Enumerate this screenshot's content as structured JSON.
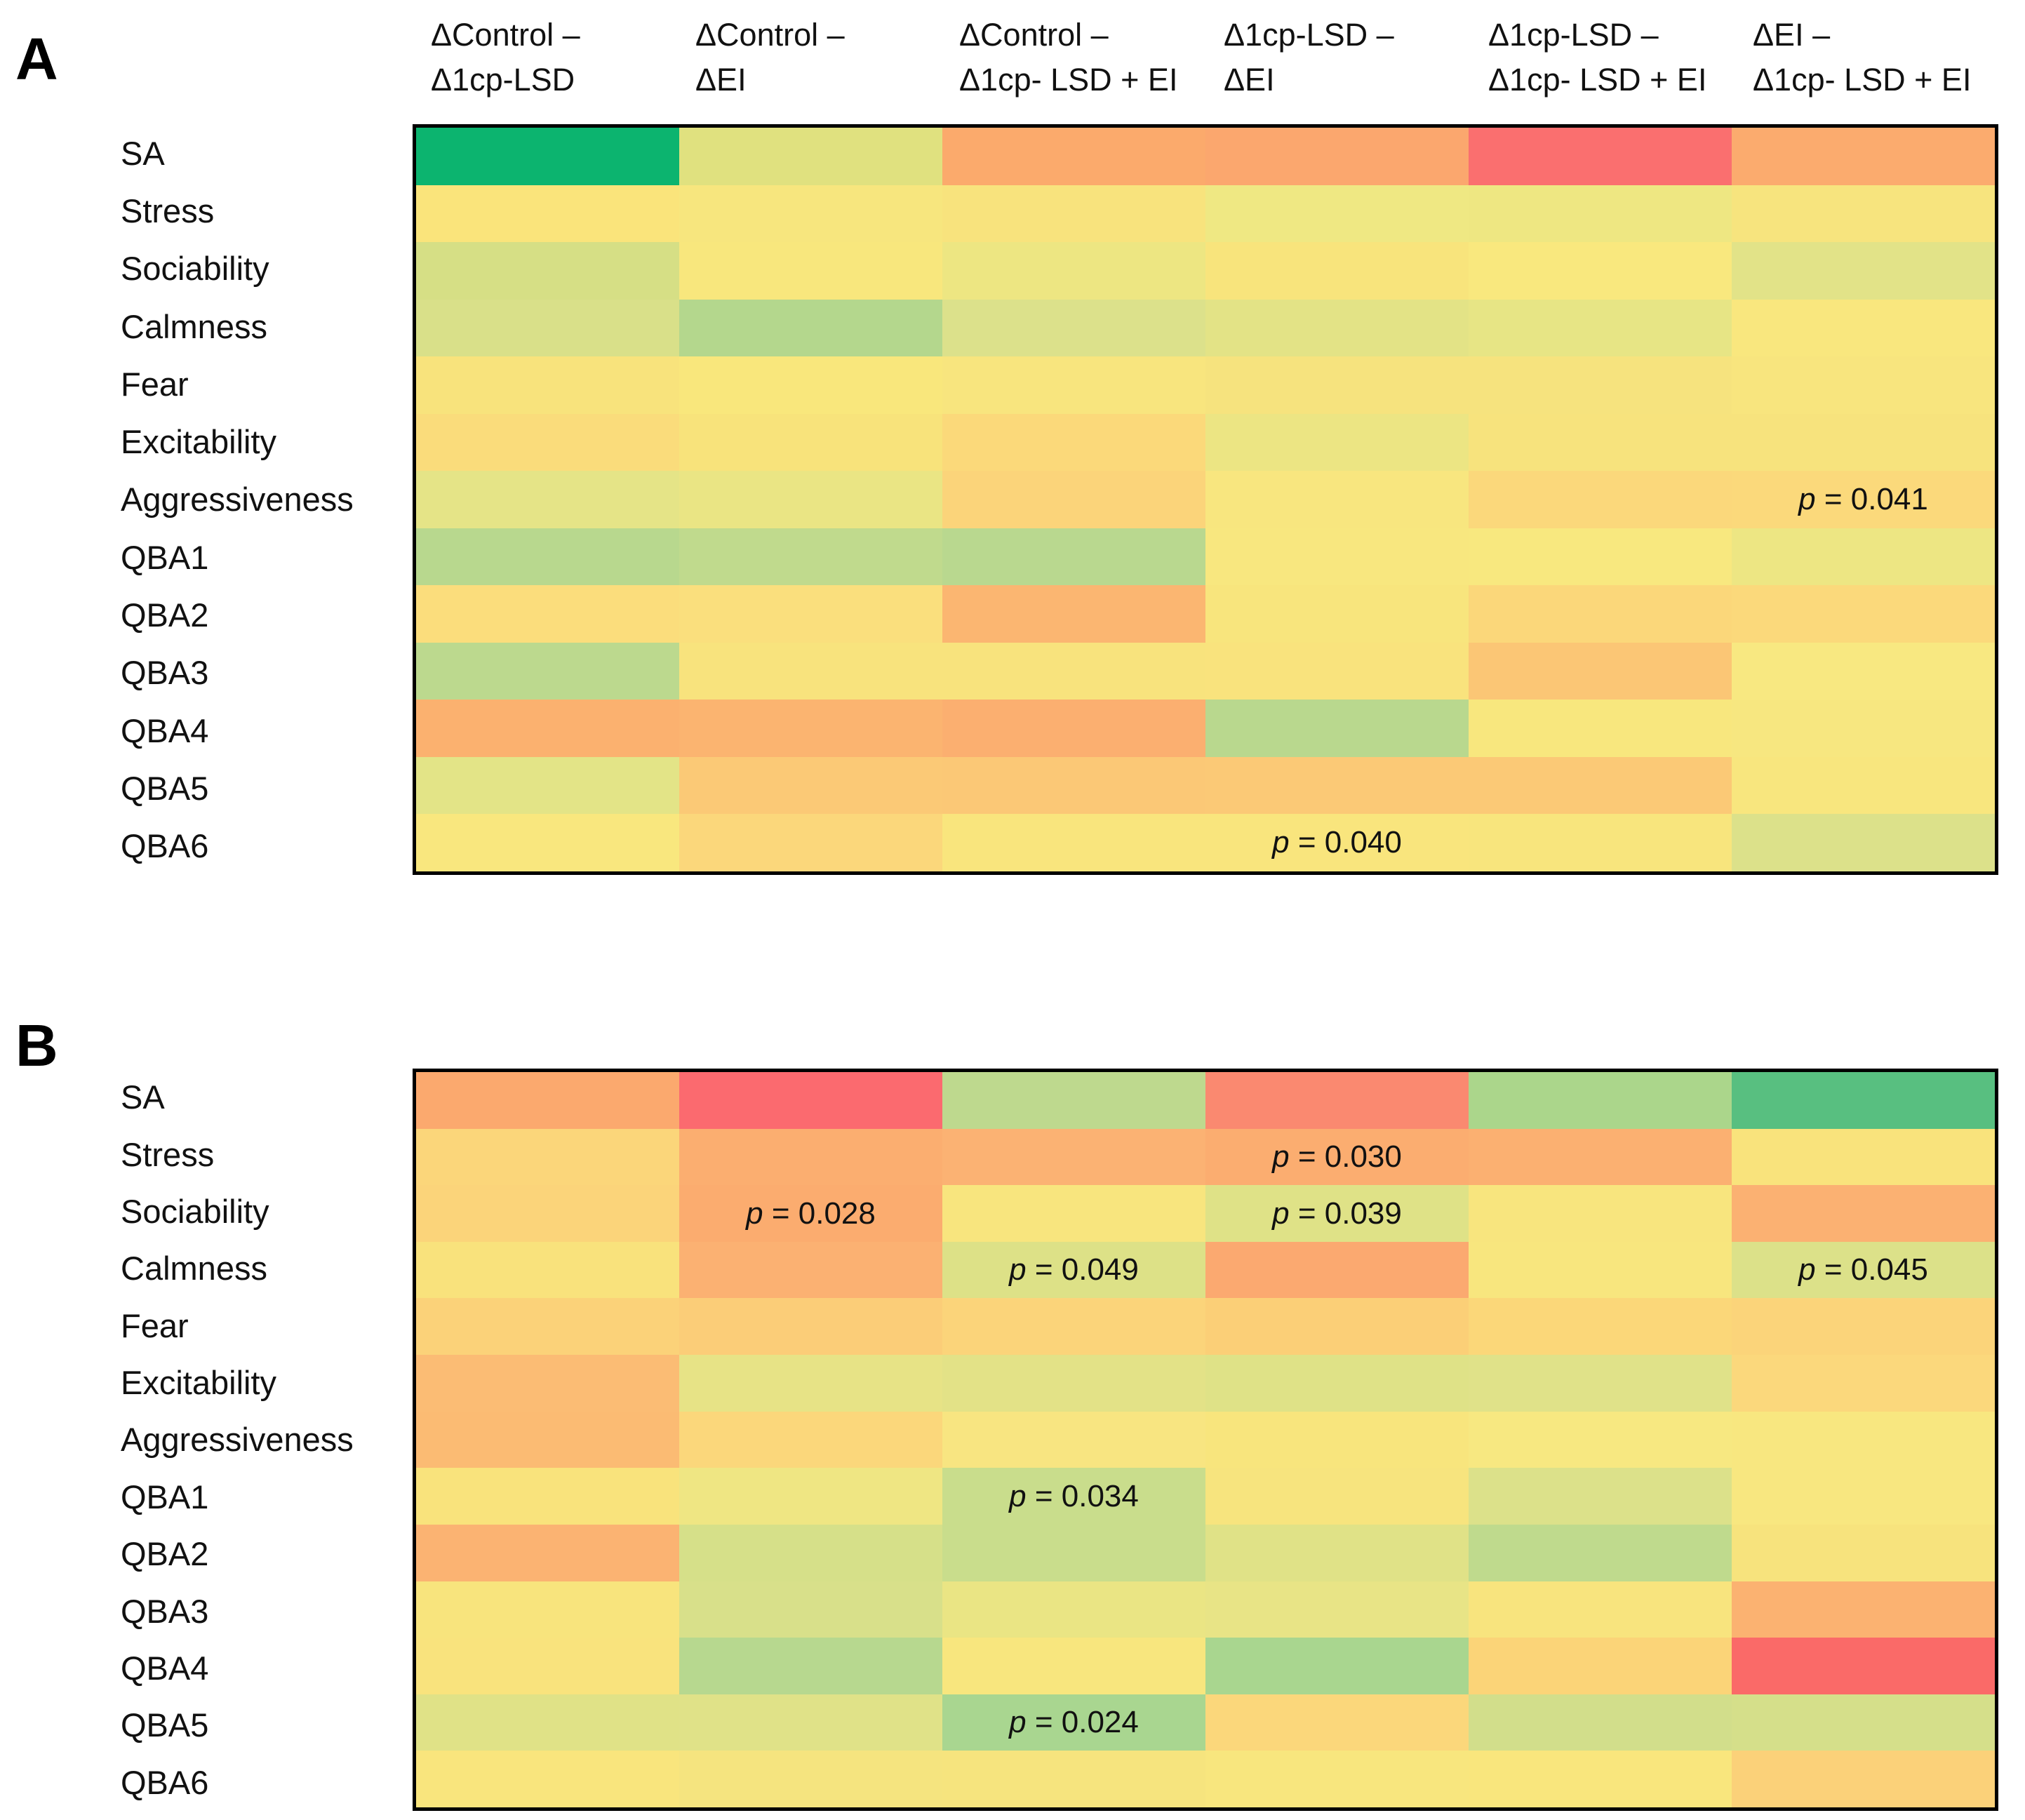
{
  "figure": {
    "panel_a_label": "A",
    "panel_b_label": "B"
  },
  "chart_data": {
    "type": "heatmap",
    "rows": [
      "SA",
      "Stress",
      "Sociability",
      "Calmness",
      "Fear",
      "Excitability",
      "Aggressiveness",
      "QBA1",
      "QBA2",
      "QBA3",
      "QBA4",
      "QBA5",
      "QBA6"
    ],
    "columns": [
      {
        "line1": "ΔControl –",
        "line2": "Δ1cp-LSD"
      },
      {
        "line1": "ΔControl –",
        "line2": "ΔEI"
      },
      {
        "line1": "ΔControl –",
        "line2": "Δ1cp- LSD + EI"
      },
      {
        "line1": "Δ1cp-LSD –",
        "line2": "ΔEI"
      },
      {
        "line1": "Δ1cp-LSD –",
        "line2": "Δ1cp- LSD + EI"
      },
      {
        "line1": "ΔEI –",
        "line2": "Δ1cp- LSD + EI"
      }
    ],
    "legend_position": "none",
    "grid": false,
    "color_scale": {
      "low": "#FA6A68",
      "mid": "#F9E67E",
      "high": "#0CB46F"
    },
    "panels": [
      {
        "label": "A",
        "cells": [
          [
            "#0CB46F",
            "#E0E17F",
            "#FBAA6C",
            "#FBA76E",
            "#FA6F6F",
            "#FBAB6E"
          ],
          [
            "#FAE47B",
            "#F7E67E",
            "#F8E37D",
            "#EFE883",
            "#EEE782",
            "#F7E47E"
          ],
          [
            "#D6DF85",
            "#F8E77D",
            "#EDE682",
            "#F8E47C",
            "#F9E87E",
            "#E2E388"
          ],
          [
            "#D9E089",
            "#B4D78D",
            "#DCE18B",
            "#E3E386",
            "#E7E585",
            "#F9E77E"
          ],
          [
            "#F8E37C",
            "#F9E77C",
            "#F8E57E",
            "#F6E37E",
            "#F6E37E",
            "#F8E57E"
          ],
          [
            "#FADC7B",
            "#F8E37B",
            "#FBD97A",
            "#ECE583",
            "#F7E37D",
            "#F7E37D"
          ],
          [
            "#E5E487",
            "#EAE584",
            "#FBD47A",
            "#F8E67F",
            "#FBD87B",
            "#FBD97B"
          ],
          [
            "#B8D88E",
            "#C0DA8D",
            "#B9D88F",
            "#F8E77F",
            "#F8E87F",
            "#EDE683"
          ],
          [
            "#FBDD7C",
            "#FADF7D",
            "#FBB671",
            "#F8E57D",
            "#FBD77A",
            "#FBD97B"
          ],
          [
            "#BCD98E",
            "#F8E37D",
            "#F8E37D",
            "#F9E37D",
            "#FBC675",
            "#F8E881"
          ],
          [
            "#FBB16F",
            "#FBB470",
            "#FBAF70",
            "#B9D88E",
            "#F8E77E",
            "#F7E780"
          ],
          [
            "#E3E487",
            "#FBC976",
            "#FBC876",
            "#FBC976",
            "#FBC976",
            "#F8E67E"
          ],
          [
            "#F9E77E",
            "#FBD77B",
            "#F9E57D",
            "#F9E57D",
            "#F8E57D",
            "#DCE18A"
          ]
        ],
        "annotations": [
          {
            "row": 6,
            "col": 5,
            "text": "p = 0.041"
          },
          {
            "row": 12,
            "col": 3,
            "text": "p = 0.040"
          }
        ]
      },
      {
        "label": "B",
        "cells": [
          [
            "#FBA96E",
            "#FB6A6F",
            "#BED98E",
            "#FA8970",
            "#ABD68B",
            "#58BF80"
          ],
          [
            "#FBD67A",
            "#FBAE70",
            "#FBB273",
            "#FBAD70",
            "#FBB071",
            "#F9E37C"
          ],
          [
            "#FBD47A",
            "#FBAC6F",
            "#F8E57E",
            "#DFE287",
            "#F8E57E",
            "#FBB172"
          ],
          [
            "#F9E27C",
            "#FBB172",
            "#DDE187",
            "#FBA970",
            "#F8E67E",
            "#DCE189"
          ],
          [
            "#FBD279",
            "#FBCD78",
            "#FBD47A",
            "#FBCF77",
            "#FBD779",
            "#FBD47A"
          ],
          [
            "#FBBC74",
            "#E7E386",
            "#E3E287",
            "#DFE287",
            "#E0E289",
            "#FBD87C"
          ],
          [
            "#FBBB73",
            "#FBD77B",
            "#F8E581",
            "#F8E57D",
            "#F7E881",
            "#F8E780"
          ],
          [
            "#F9E37C",
            "#EFE683",
            "#C9DD8C",
            "#F7E47E",
            "#DCE18A",
            "#F8E780"
          ],
          [
            "#FBB372",
            "#D6E089",
            "#C9DD8C",
            "#E0E287",
            "#BFDA8D",
            "#F7E37D"
          ],
          [
            "#F8E47D",
            "#D8E08A",
            "#EAE584",
            "#E8E486",
            "#F8E47E",
            "#FBB271"
          ],
          [
            "#F9E37D",
            "#B7D88F",
            "#F8E67E",
            "#A9D68F",
            "#FBD478",
            "#FA6A68"
          ],
          [
            "#E0E287",
            "#E0E288",
            "#A9D690",
            "#FBD77B",
            "#D2DE8B",
            "#D5DF8A"
          ],
          [
            "#F9E57D",
            "#F5E47F",
            "#F6E47E",
            "#F8E67E",
            "#F9E67D",
            "#FBD179"
          ]
        ],
        "annotations": [
          {
            "row": 1,
            "col": 3,
            "text": "p = 0.030"
          },
          {
            "row": 2,
            "col": 1,
            "text": "p = 0.028"
          },
          {
            "row": 2,
            "col": 3,
            "text": "p = 0.039"
          },
          {
            "row": 3,
            "col": 2,
            "text": "p = 0.049"
          },
          {
            "row": 3,
            "col": 5,
            "text": "p = 0.045"
          },
          {
            "row": 7,
            "col": 2,
            "text": "p = 0.034"
          },
          {
            "row": 11,
            "col": 2,
            "text": "p = 0.024"
          }
        ]
      }
    ]
  }
}
